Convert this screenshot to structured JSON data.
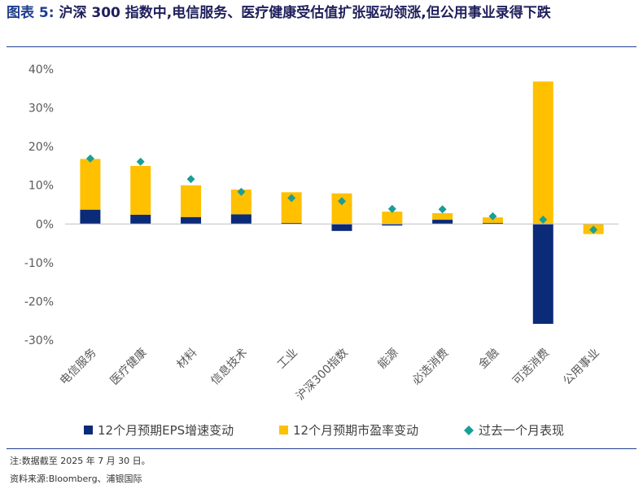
{
  "title": {
    "label": "图表 5:",
    "text": "沪深 300 指数中,电信服务、医疗健康受估值扩张驱动领涨,但公用事业录得下跌"
  },
  "notes": {
    "note": "注:数据截至 2025 年 7 月 30 日。",
    "source": "资料来源:Bloomberg、浦银国际"
  },
  "colors": {
    "eps": "#0b2a78",
    "pe": "#ffc000",
    "total": "#1a9e96",
    "axis_text": "#595959",
    "zero_line": "#bfbfbf",
    "title_blue": "#1f3f8f"
  },
  "chart_data": {
    "type": "bar",
    "stacked": true,
    "categories": [
      "电信服务",
      "医疗健康",
      "材料",
      "信息技术",
      "工业",
      "沪深300指数",
      "能源",
      "必选消费",
      "金融",
      "可选消费",
      "公用事业"
    ],
    "series": [
      {
        "name": "12个月预期EPS增速变动",
        "kind": "bar",
        "values": [
          3.7,
          2.4,
          1.8,
          2.5,
          0.3,
          -1.8,
          -0.4,
          1.1,
          0.3,
          -25.8,
          0.0
        ]
      },
      {
        "name": "12个月预期市盈率变动",
        "kind": "bar",
        "values": [
          13.1,
          12.6,
          8.2,
          6.4,
          7.9,
          7.9,
          3.2,
          1.7,
          1.4,
          36.8,
          -2.6
        ]
      },
      {
        "name": "过去一个月表现",
        "kind": "marker",
        "values": [
          16.9,
          16.1,
          11.6,
          8.3,
          6.7,
          5.9,
          3.9,
          3.8,
          2.0,
          1.1,
          -1.5
        ]
      }
    ],
    "ylim": [
      -30,
      40
    ],
    "yticks": [
      "-30%",
      "-20%",
      "-10%",
      "0%",
      "10%",
      "20%",
      "30%",
      "40%"
    ],
    "ytick_values": [
      -30,
      -20,
      -10,
      0,
      10,
      20,
      30,
      40
    ],
    "legend_position": "bottom",
    "grid": false
  }
}
